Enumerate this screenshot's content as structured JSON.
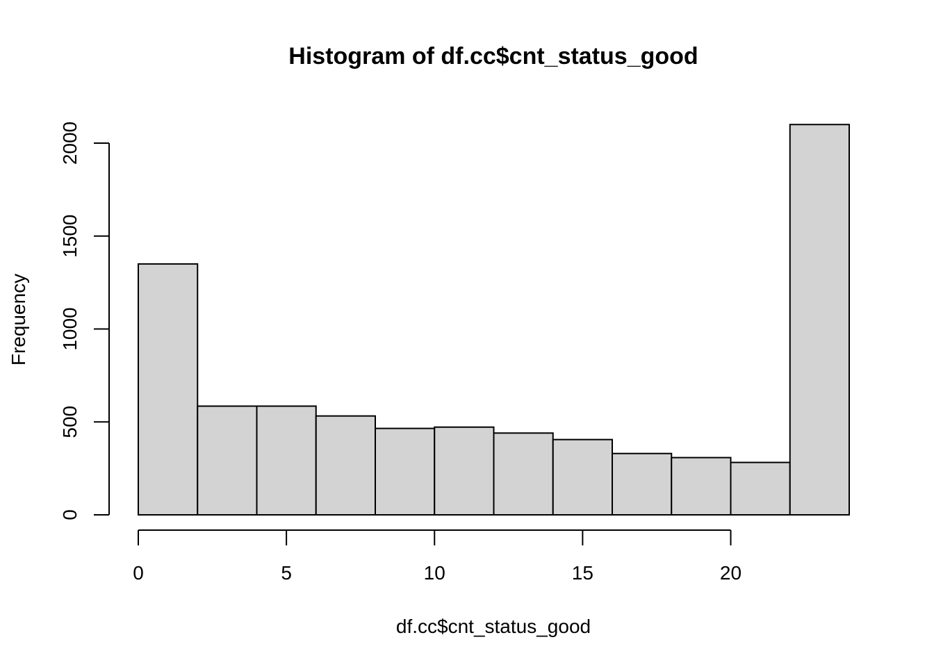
{
  "chart_data": {
    "type": "bar",
    "title": "Histogram of df.cc$cnt_status_good",
    "xlabel": "df.cc$cnt_status_good",
    "ylabel": "Frequency",
    "bins": [
      {
        "x0": 0,
        "x1": 2,
        "count": 1350
      },
      {
        "x0": 2,
        "x1": 4,
        "count": 585
      },
      {
        "x0": 4,
        "x1": 6,
        "count": 585
      },
      {
        "x0": 6,
        "x1": 8,
        "count": 532
      },
      {
        "x0": 8,
        "x1": 10,
        "count": 465
      },
      {
        "x0": 10,
        "x1": 12,
        "count": 472
      },
      {
        "x0": 12,
        "x1": 14,
        "count": 440
      },
      {
        "x0": 14,
        "x1": 16,
        "count": 405
      },
      {
        "x0": 16,
        "x1": 18,
        "count": 330
      },
      {
        "x0": 18,
        "x1": 20,
        "count": 308
      },
      {
        "x0": 20,
        "x1": 22,
        "count": 282
      },
      {
        "x0": 22,
        "x1": 24,
        "count": 2100
      }
    ],
    "xticks": [
      0,
      5,
      10,
      15,
      20
    ],
    "yticks": [
      0,
      500,
      1000,
      1500,
      2000
    ],
    "xlim": [
      0,
      24
    ],
    "ylim": [
      0,
      2100
    ],
    "grid": false,
    "colors": {
      "bar_fill": "#d3d3d3",
      "bar_stroke": "#000000"
    }
  }
}
